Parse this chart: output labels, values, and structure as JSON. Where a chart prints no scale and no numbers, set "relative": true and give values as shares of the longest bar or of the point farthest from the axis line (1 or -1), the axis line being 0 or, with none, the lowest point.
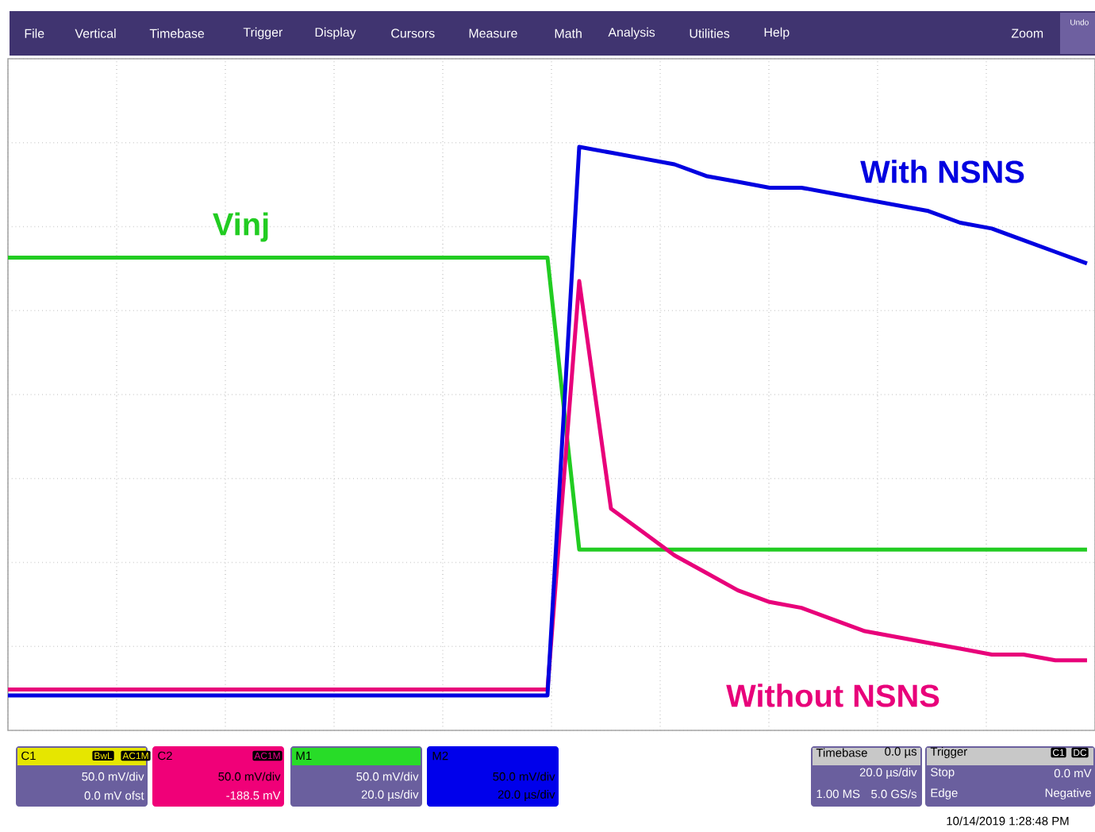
{
  "chart_data": {
    "type": "line",
    "relative": true,
    "grid": true,
    "categories": [
      null,
      null,
      null,
      null,
      null,
      null,
      null,
      null,
      null,
      null,
      null,
      null,
      null,
      null,
      null,
      null,
      null,
      null,
      null,
      null,
      null,
      null,
      null,
      null,
      null,
      null,
      null,
      null,
      null,
      null,
      null,
      null,
      null,
      null,
      null
    ],
    "series": [
      {
        "name": "Vinj",
        "color": "#22cc22",
        "values": [
          0.81,
          0.81,
          0.81,
          0.81,
          0.81,
          0.81,
          0.81,
          0.81,
          0.81,
          0.81,
          0.81,
          0.81,
          0.81,
          0.81,
          0.81,
          0.81,
          0.81,
          0.81,
          0.31,
          0.31,
          0.31,
          0.31,
          0.31,
          0.31,
          0.31,
          0.31,
          0.31,
          0.31,
          0.31,
          0.31,
          0.31,
          0.31,
          0.31,
          0.31,
          0.31
        ]
      },
      {
        "name": "Without NSNS",
        "color": "#e8007a",
        "values": [
          0.07,
          0.07,
          0.07,
          0.07,
          0.07,
          0.07,
          0.07,
          0.07,
          0.07,
          0.07,
          0.07,
          0.07,
          0.07,
          0.07,
          0.07,
          0.07,
          0.07,
          0.07,
          0.77,
          0.38,
          0.34,
          0.3,
          0.27,
          0.24,
          0.22,
          0.21,
          0.19,
          0.17,
          0.16,
          0.15,
          0.14,
          0.13,
          0.13,
          0.12,
          0.12
        ]
      },
      {
        "name": "With NSNS",
        "color": "#0000e0",
        "values": [
          0.06,
          0.06,
          0.06,
          0.06,
          0.06,
          0.06,
          0.06,
          0.06,
          0.06,
          0.06,
          0.06,
          0.06,
          0.06,
          0.06,
          0.06,
          0.06,
          0.06,
          0.06,
          1.0,
          0.99,
          0.98,
          0.97,
          0.95,
          0.94,
          0.93,
          0.93,
          0.92,
          0.91,
          0.9,
          0.89,
          0.87,
          0.86,
          0.84,
          0.82,
          0.8
        ]
      }
    ],
    "annotations": [
      "File",
      "Vertical",
      "Timebase",
      "Trigger",
      "Display",
      "Cursors",
      "Measure",
      "Math",
      "Analysis",
      "Utilities",
      "Help",
      "Zoom",
      "Undo",
      "C1",
      "BwL",
      "AC1M",
      "50.0 mV/div",
      "0.0 mV ofst",
      "C2",
      "AC1M",
      "50.0 mV/div",
      "-188.5 mV",
      "M1",
      "50.0 mV/div",
      "20.0 µs/div",
      "M2",
      "50.0 mV/div",
      "20.0 µs/div",
      "Timebase",
      "0.0 µs",
      "20.0 µs/div",
      "1.00 MS",
      "5.0 GS/s",
      "Trigger",
      "C1",
      "DC",
      "Stop",
      "0.0 mV",
      "Edge",
      "Negative",
      "10/14/2019 1:28:48 PM"
    ]
  }
}
